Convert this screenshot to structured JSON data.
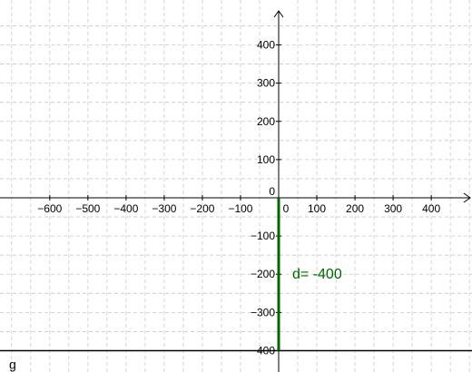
{
  "chart_data": {
    "type": "line",
    "title": "",
    "xlabel": "",
    "ylabel": "",
    "xlim": [
      -700,
      500
    ],
    "ylim": [
      -400,
      480
    ],
    "grid": true,
    "grid_color": "#c8c8c8",
    "axis_color": "#000000",
    "x_ticks": [
      -600,
      -500,
      -400,
      -300,
      -200,
      -100,
      0,
      100,
      200,
      300,
      400
    ],
    "x_tick_labels": [
      "−600",
      "−500",
      "−400",
      "−300",
      "−200",
      "−100",
      "0",
      "100",
      "200",
      "300",
      "400"
    ],
    "y_ticks": [
      400,
      300,
      200,
      100,
      0,
      -100,
      -200,
      -300,
      -400
    ],
    "y_tick_labels": [
      "400",
      "300",
      "200",
      "100",
      "0",
      "−100",
      "−200",
      "−300",
      "−400"
    ],
    "segment": {
      "x": [
        0,
        0
      ],
      "y": [
        0,
        -400
      ],
      "label": "d= -400",
      "color": "#006400"
    },
    "horizontal_line": {
      "y": -400,
      "label": "g",
      "color": "#000000"
    }
  }
}
